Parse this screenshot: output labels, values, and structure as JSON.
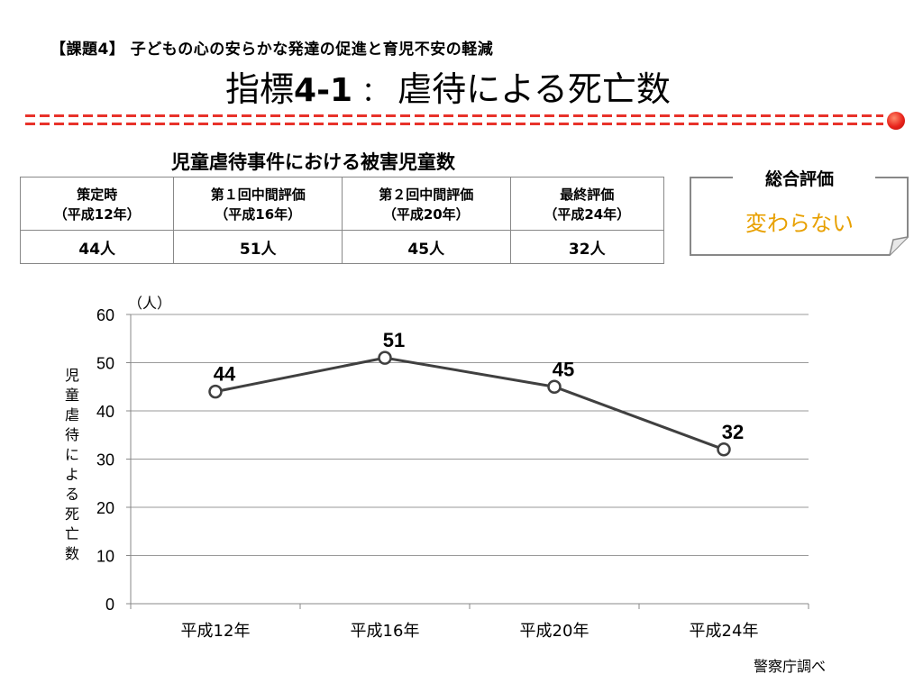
{
  "header": {
    "subtitle": "【課題4】 子どもの心の安らかな発達の促進と育児不安の軽減",
    "title_prefix": "指標",
    "title_code": "4-1",
    "title_sep": "：",
    "title_main": "虐待による死亡数"
  },
  "table": {
    "title": "児童虐待事件における被害児童数",
    "headers": [
      {
        "line1": "策定時",
        "line2": "（平成12年）"
      },
      {
        "line1": "第１回中間評価",
        "line2": "（平成16年）"
      },
      {
        "line1": "第２回中間評価",
        "line2": "（平成20年）"
      },
      {
        "line1": "最終評価",
        "line2": "（平成24年）"
      }
    ],
    "values": [
      "44人",
      "51人",
      "45人",
      "32人"
    ]
  },
  "evaluation": {
    "label": "総合評価",
    "value": "変わらない",
    "value_color": "#e8a000"
  },
  "colors": {
    "accent_red": "#e8322a",
    "line": "#404040"
  },
  "chart_data": {
    "type": "line",
    "categories": [
      "平成12年",
      "平成16年",
      "平成20年",
      "平成24年"
    ],
    "values": [
      44,
      51,
      45,
      32
    ],
    "data_labels": [
      "44",
      "51",
      "45",
      "32"
    ],
    "ylabel": "児童虐待による死亡数",
    "yunit": "（人）",
    "ylim": [
      0,
      60
    ],
    "yticks": [
      0,
      10,
      20,
      30,
      40,
      50,
      60
    ],
    "grid": true,
    "legend": "none"
  },
  "source": "警察庁調べ"
}
